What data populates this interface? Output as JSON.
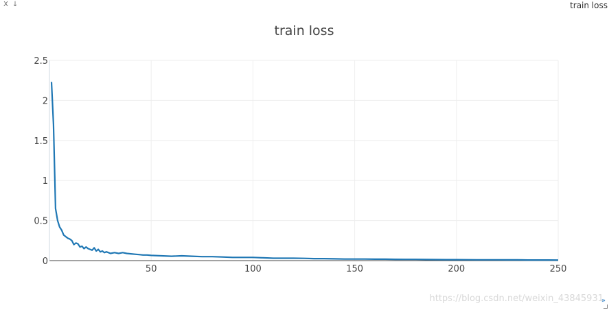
{
  "window": {
    "controls": [
      "X",
      "↓"
    ],
    "title": "train loss",
    "expand_glyph": "»"
  },
  "watermark": "https://blog.csdn.net/weixin_43845931",
  "colors": {
    "line": "#1f77b4",
    "grid": "#eeeeee",
    "axis": "#444444"
  },
  "chart_data": {
    "type": "line",
    "title": "train loss",
    "xlabel": "",
    "ylabel": "",
    "xlim": [
      0,
      250
    ],
    "ylim": [
      0,
      2.5
    ],
    "x_ticks": [
      50,
      100,
      150,
      200,
      250
    ],
    "x_tick_labels": [
      "50",
      "100",
      "150",
      "200",
      "250"
    ],
    "y_ticks": [
      0,
      0.5,
      1,
      1.5,
      2,
      2.5
    ],
    "y_tick_labels": [
      "0",
      "0.5",
      "1",
      "1.5",
      "2",
      "2.5"
    ],
    "grid": true,
    "legend": "none",
    "series": [
      {
        "x": [
          1,
          2,
          3,
          4,
          5,
          6,
          7,
          8,
          9,
          10,
          11,
          12,
          13,
          14,
          15,
          16,
          17,
          18,
          19,
          20,
          21,
          22,
          23,
          24,
          25,
          26,
          27,
          28,
          29,
          30,
          32,
          34,
          36,
          38,
          40,
          42,
          44,
          46,
          48,
          50,
          55,
          60,
          65,
          70,
          75,
          80,
          85,
          90,
          95,
          100,
          105,
          110,
          115,
          120,
          125,
          130,
          135,
          140,
          145,
          150,
          155,
          160,
          165,
          170,
          175,
          180,
          185,
          190,
          195,
          200,
          205,
          210,
          215,
          220,
          225,
          230,
          235,
          240,
          245,
          250
        ],
        "y": [
          2.23,
          1.7,
          0.65,
          0.5,
          0.42,
          0.38,
          0.32,
          0.3,
          0.28,
          0.27,
          0.25,
          0.2,
          0.22,
          0.21,
          0.17,
          0.18,
          0.15,
          0.17,
          0.15,
          0.14,
          0.13,
          0.16,
          0.12,
          0.14,
          0.11,
          0.12,
          0.1,
          0.11,
          0.1,
          0.09,
          0.1,
          0.09,
          0.1,
          0.09,
          0.085,
          0.08,
          0.075,
          0.07,
          0.07,
          0.065,
          0.06,
          0.055,
          0.06,
          0.055,
          0.05,
          0.05,
          0.045,
          0.04,
          0.04,
          0.04,
          0.035,
          0.03,
          0.03,
          0.03,
          0.028,
          0.025,
          0.025,
          0.022,
          0.02,
          0.02,
          0.02,
          0.018,
          0.018,
          0.016,
          0.015,
          0.015,
          0.014,
          0.013,
          0.012,
          0.012,
          0.011,
          0.01,
          0.01,
          0.01,
          0.009,
          0.009,
          0.008,
          0.008,
          0.008,
          0.007
        ]
      }
    ]
  }
}
